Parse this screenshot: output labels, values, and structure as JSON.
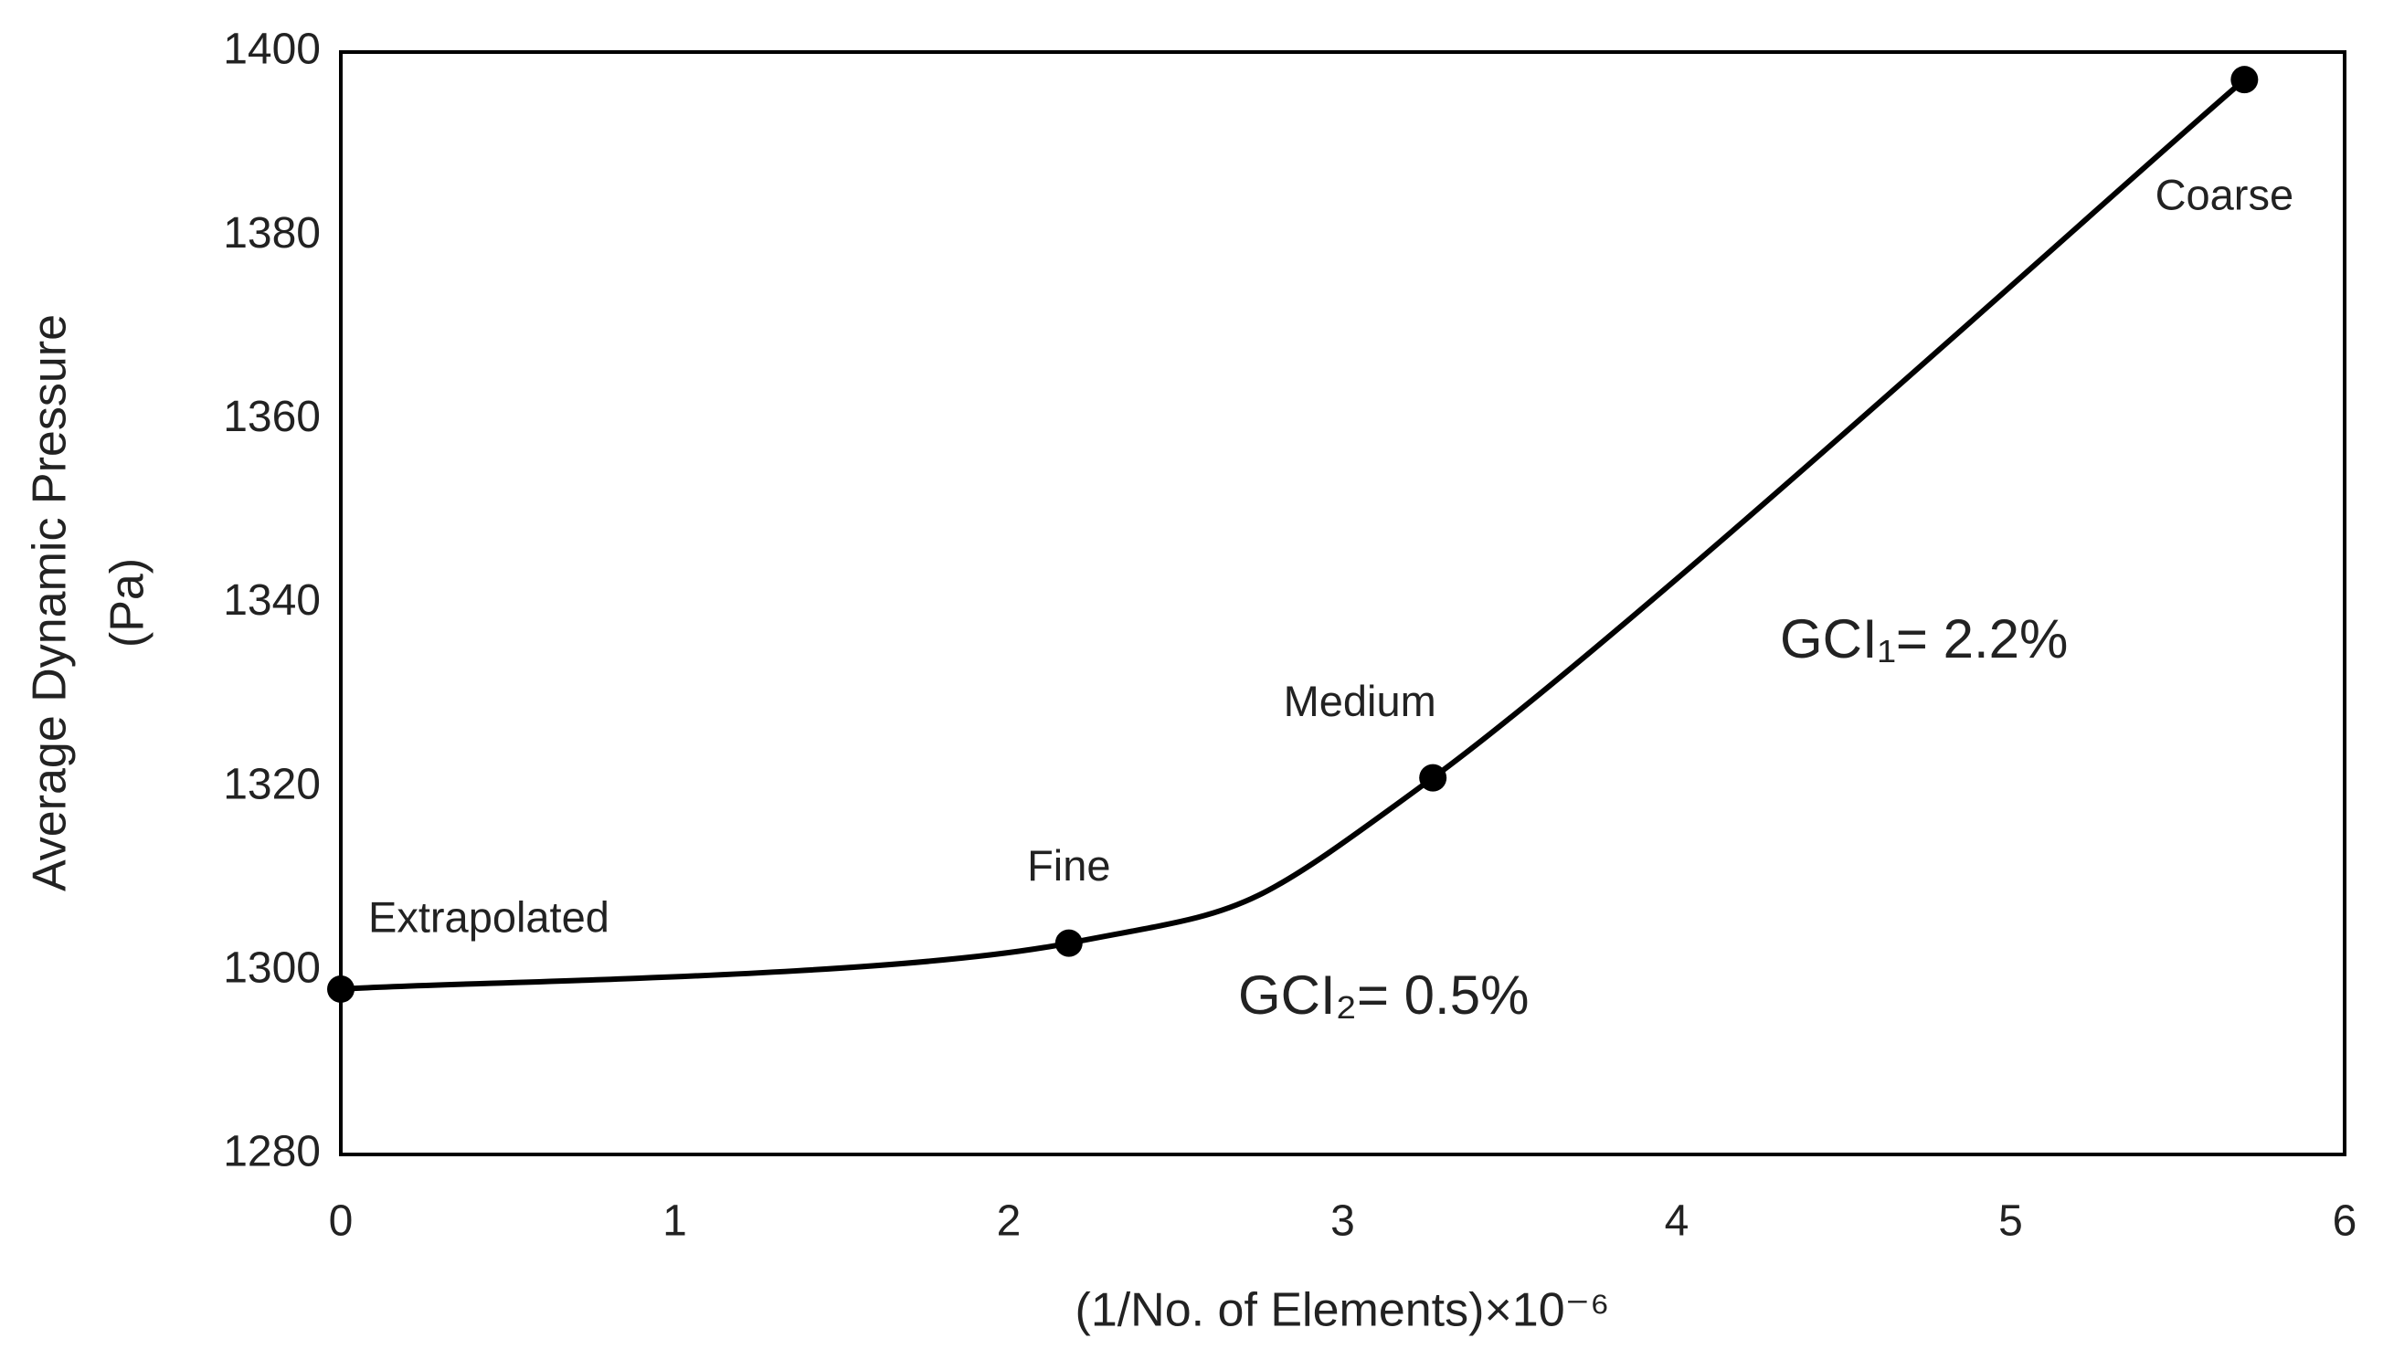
{
  "chart_data": {
    "type": "line",
    "x_label": "(1/No. of Elements)×10⁻⁶",
    "y_label": [
      "Average Dynamic Pressure",
      "(Pa)"
    ],
    "x": [
      0,
      2.18,
      3.27,
      5.7
    ],
    "series": [
      {
        "color": "#000000",
        "values": [
          1298,
          1303,
          1321,
          1397
        ]
      }
    ],
    "point_labels": [
      "Extrapolated",
      "Fine",
      "Medium",
      "Coarse"
    ],
    "annotations": [
      "GCI₁= 2.2%",
      "GCI₂= 0.5%"
    ],
    "xlim": [
      0,
      6
    ],
    "xticks": [
      0,
      1,
      2,
      3,
      4,
      5,
      6
    ],
    "ylim": [
      1280,
      1400
    ],
    "yticks": [
      1280,
      1300,
      1320,
      1340,
      1360,
      1380,
      1400
    ],
    "smooth": true,
    "grid": false
  }
}
